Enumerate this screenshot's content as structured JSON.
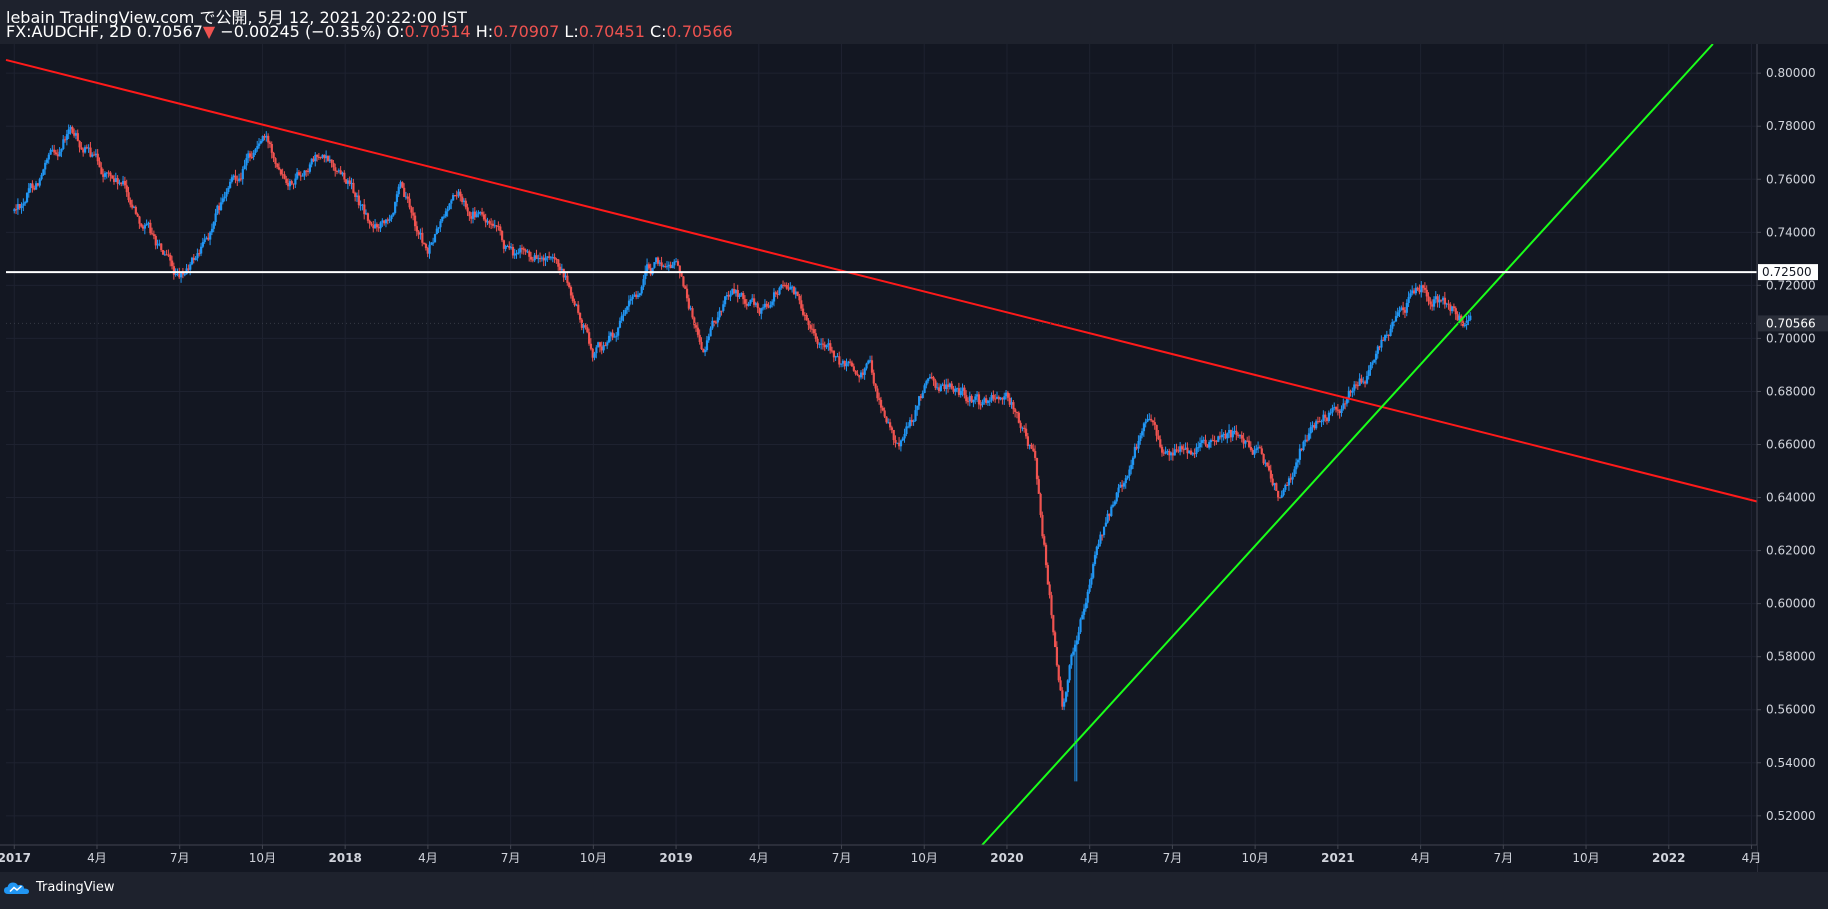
{
  "header": {
    "author_line": "lebain TradingView.com で公開, 5月 12, 2021 20:22:00 JST",
    "symbol": "FX:AUDCHF, 2D",
    "last": "0.70567",
    "change_arrow": "▼",
    "change": "−0.00245 (−0.35%)",
    "o_label": "O:",
    "o": "0.70514",
    "h_label": "H:",
    "h": "0.70907",
    "l_label": "L:",
    "l": "0.70451",
    "c_label": "C:",
    "c": "0.70566"
  },
  "footer": {
    "brand": "TradingView"
  },
  "colors": {
    "background": "#131722",
    "up": "#2196f3",
    "down": "#ef5350",
    "resistance": "#ff1a1a",
    "support": "#1aff1a",
    "level": "#ffffff"
  },
  "chart_data": {
    "type": "candlestick",
    "symbol": "FX:AUDCHF",
    "interval": "2D",
    "y_axis": {
      "range": [
        0.509,
        0.811
      ],
      "ticks": [
        "0.80000",
        "0.78000",
        "0.76000",
        "0.74000",
        "0.72000",
        "0.70000",
        "0.68000",
        "0.66000",
        "0.64000",
        "0.62000",
        "0.60000",
        "0.58000",
        "0.56000",
        "0.54000",
        "0.52000"
      ]
    },
    "x_axis": {
      "range_months": [
        -0.3,
        63.2
      ],
      "ticks": [
        {
          "m": 0,
          "label": "2017"
        },
        {
          "m": 3,
          "label": "4月"
        },
        {
          "m": 6,
          "label": "7月"
        },
        {
          "m": 9,
          "label": "10月"
        },
        {
          "m": 12,
          "label": "2018"
        },
        {
          "m": 15,
          "label": "4月"
        },
        {
          "m": 18,
          "label": "7月"
        },
        {
          "m": 21,
          "label": "10月"
        },
        {
          "m": 24,
          "label": "2019"
        },
        {
          "m": 27,
          "label": "4月"
        },
        {
          "m": 30,
          "label": "7月"
        },
        {
          "m": 33,
          "label": "10月"
        },
        {
          "m": 36,
          "label": "2020"
        },
        {
          "m": 39,
          "label": "4月"
        },
        {
          "m": 42,
          "label": "7月"
        },
        {
          "m": 45,
          "label": "10月"
        },
        {
          "m": 48,
          "label": "2021"
        },
        {
          "m": 51,
          "label": "4月"
        },
        {
          "m": 54,
          "label": "7月"
        },
        {
          "m": 57,
          "label": "10月"
        },
        {
          "m": 60,
          "label": "2022"
        },
        {
          "m": 63,
          "label": "4月"
        }
      ]
    },
    "price_path": [
      [
        0,
        0.748
      ],
      [
        1,
        0.762
      ],
      [
        2,
        0.778
      ],
      [
        3,
        0.766
      ],
      [
        4,
        0.756
      ],
      [
        5,
        0.738
      ],
      [
        6,
        0.72
      ],
      [
        7,
        0.738
      ],
      [
        8,
        0.76
      ],
      [
        9,
        0.776
      ],
      [
        10,
        0.762
      ],
      [
        11,
        0.768
      ],
      [
        12,
        0.762
      ],
      [
        13,
        0.74
      ],
      [
        14,
        0.755
      ],
      [
        15,
        0.732
      ],
      [
        16,
        0.755
      ],
      [
        17,
        0.745
      ],
      [
        18,
        0.73
      ],
      [
        19,
        0.732
      ],
      [
        20,
        0.72
      ],
      [
        21,
        0.695
      ],
      [
        22,
        0.705
      ],
      [
        23,
        0.725
      ],
      [
        24,
        0.73
      ],
      [
        25,
        0.695
      ],
      [
        26,
        0.72
      ],
      [
        27,
        0.71
      ],
      [
        28,
        0.722
      ],
      [
        29,
        0.705
      ],
      [
        30,
        0.688
      ],
      [
        31,
        0.69
      ],
      [
        32,
        0.658
      ],
      [
        33,
        0.68
      ],
      [
        34,
        0.682
      ],
      [
        35,
        0.674
      ],
      [
        36,
        0.679
      ],
      [
        37,
        0.655
      ],
      [
        38,
        0.56
      ],
      [
        38.3,
        0.578
      ],
      [
        39,
        0.612
      ],
      [
        40,
        0.64
      ],
      [
        41,
        0.668
      ],
      [
        42,
        0.655
      ],
      [
        43,
        0.66
      ],
      [
        44,
        0.665
      ],
      [
        45,
        0.66
      ],
      [
        46,
        0.64
      ],
      [
        47,
        0.668
      ],
      [
        48,
        0.675
      ],
      [
        49,
        0.685
      ],
      [
        50,
        0.705
      ],
      [
        51,
        0.72
      ],
      [
        52,
        0.712
      ],
      [
        52.8,
        0.706
      ]
    ],
    "events": {
      "spike_low": {
        "m": 38.5,
        "price": 0.533
      }
    },
    "last_price": "0.70566",
    "drawings": [
      {
        "name": "resistance-trendline",
        "color": "#ff1a1a",
        "from": {
          "m": -0.3,
          "price": 0.805
        },
        "to": {
          "m": 63.2,
          "price": 0.6385
        }
      },
      {
        "name": "support-trendline",
        "color": "#1aff1a",
        "from": {
          "m": 35.1,
          "price": 0.509
        },
        "to": {
          "m": 61.6,
          "price": 0.811
        }
      },
      {
        "name": "horizontal-level",
        "color": "#ffffff",
        "price": 0.725,
        "label": "0.72500"
      }
    ]
  }
}
